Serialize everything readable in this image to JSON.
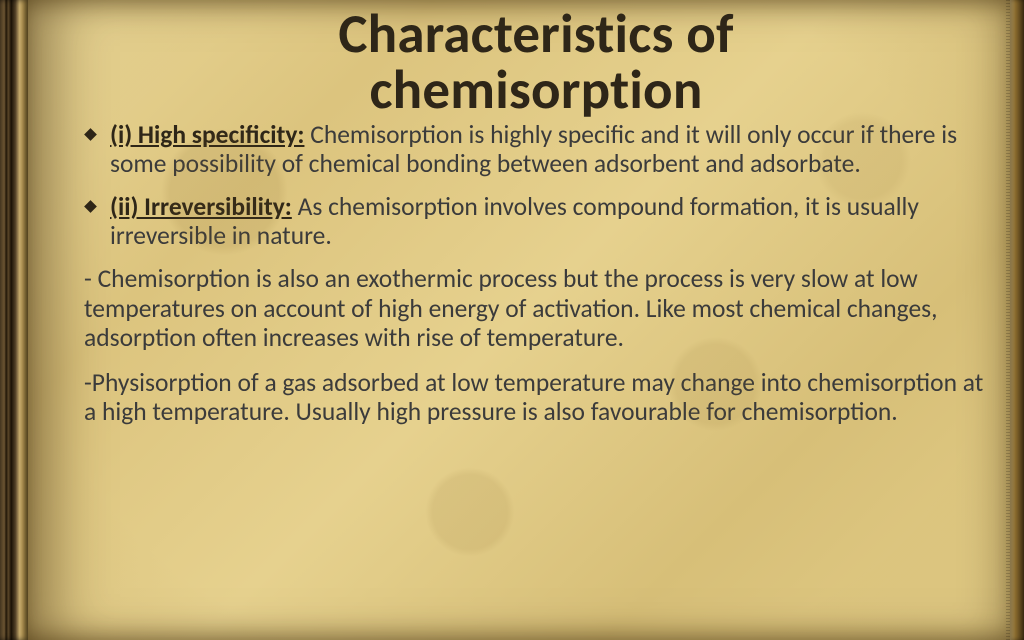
{
  "slide": {
    "title_line1": "Characteristics of",
    "title_line2": "chemisorption",
    "title_fontsize_pt": 40,
    "body_fontsize_pt": 19,
    "colors": {
      "page_base": "#e2cc86",
      "page_highlight": "#e9d696",
      "page_shadow": "#d7bf78",
      "spine_dark": "#1a1106",
      "spine_gold": "#b99a55",
      "text_heading": "#2e2618",
      "text_body": "#3b3b3b"
    },
    "bullets": [
      {
        "label": "(i) High specificity:",
        "text": " Chemisorption is highly specific and it will only occur if there is some possibility of chemical bonding between adsorbent and adsorbate."
      },
      {
        "label": "(ii) Irreversibility:",
        "text": " As chemisorption involves compound formation, it is usually irreversible in nature."
      }
    ],
    "paragraphs": [
      "- Chemisorption is also an exothermic process but the process is very slow at low temperatures on account of high energy of activation. Like most chemical changes, adsorption often increases with rise of temperature.",
      "-Physisorption of a gas adsorbed at low temperature may change into chemisorption at a high temperature. Usually high pressure is also favourable for chemisorption."
    ]
  }
}
